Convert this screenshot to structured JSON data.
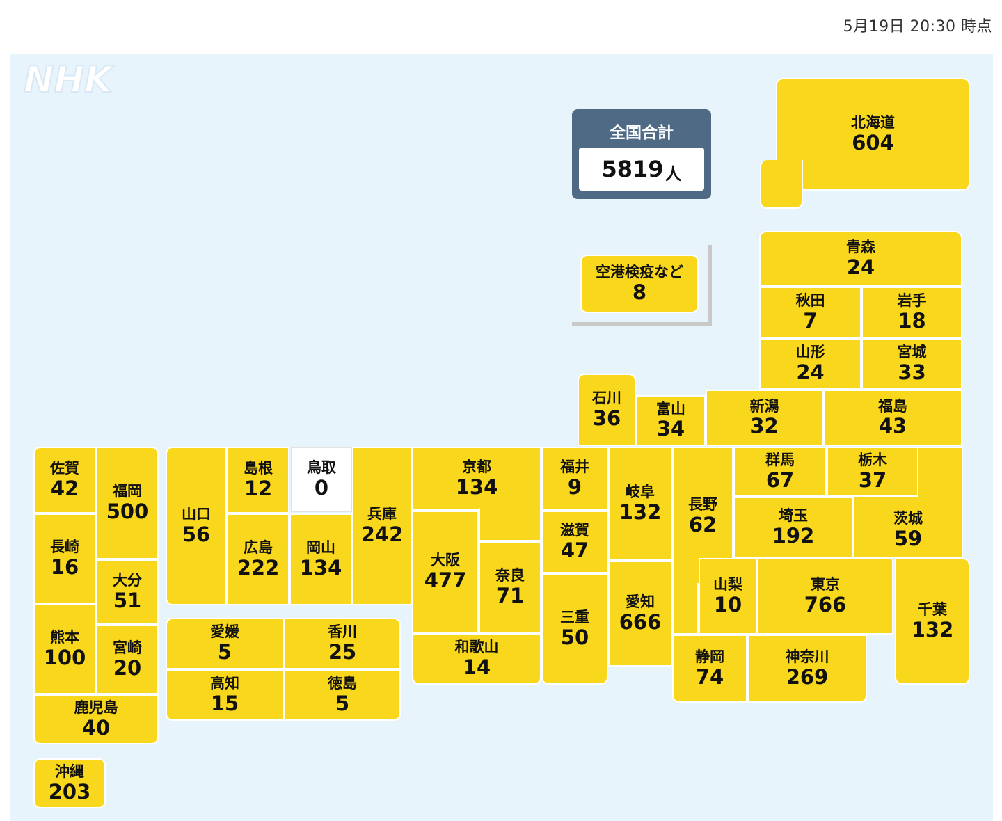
{
  "timestamp": "5月19日 20:30 時点",
  "logo": {
    "text": "NHK"
  },
  "colors": {
    "background": "#e8f4fc",
    "case_fill": "#f9d71c",
    "zero_fill": "#ffffff",
    "total_panel": "#4f6a84"
  },
  "total": {
    "label": "全国合計",
    "value": "5819",
    "unit": "人"
  },
  "quarantine": {
    "name": "空港検疫など",
    "value": "8"
  },
  "prefectures": [
    {
      "key": "hokkaido",
      "name": "北海道",
      "value": "604"
    },
    {
      "key": "aomori",
      "name": "青森",
      "value": "24"
    },
    {
      "key": "akita",
      "name": "秋田",
      "value": "7"
    },
    {
      "key": "iwate",
      "name": "岩手",
      "value": "18"
    },
    {
      "key": "yamagata",
      "name": "山形",
      "value": "24"
    },
    {
      "key": "miyagi",
      "name": "宮城",
      "value": "33"
    },
    {
      "key": "ishikawa",
      "name": "石川",
      "value": "36"
    },
    {
      "key": "toyama",
      "name": "富山",
      "value": "34"
    },
    {
      "key": "niigata",
      "name": "新潟",
      "value": "32"
    },
    {
      "key": "fukushima",
      "name": "福島",
      "value": "43"
    },
    {
      "key": "saga",
      "name": "佐賀",
      "value": "42"
    },
    {
      "key": "fukuoka",
      "name": "福岡",
      "value": "500"
    },
    {
      "key": "yamaguchi",
      "name": "山口",
      "value": "56"
    },
    {
      "key": "shimane",
      "name": "島根",
      "value": "12"
    },
    {
      "key": "tottori",
      "name": "鳥取",
      "value": "0"
    },
    {
      "key": "hyogo",
      "name": "兵庫",
      "value": "242"
    },
    {
      "key": "kyoto",
      "name": "京都",
      "value": "134"
    },
    {
      "key": "fukui",
      "name": "福井",
      "value": "9"
    },
    {
      "key": "gifu",
      "name": "岐阜",
      "value": "132"
    },
    {
      "key": "nagano",
      "name": "長野",
      "value": "62"
    },
    {
      "key": "gunma",
      "name": "群馬",
      "value": "67"
    },
    {
      "key": "tochigi",
      "name": "栃木",
      "value": "37"
    },
    {
      "key": "nagasaki",
      "name": "長崎",
      "value": "16"
    },
    {
      "key": "oita",
      "name": "大分",
      "value": "51"
    },
    {
      "key": "hiroshima",
      "name": "広島",
      "value": "222"
    },
    {
      "key": "okayama",
      "name": "岡山",
      "value": "134"
    },
    {
      "key": "osaka",
      "name": "大阪",
      "value": "477"
    },
    {
      "key": "nara",
      "name": "奈良",
      "value": "71"
    },
    {
      "key": "shiga",
      "name": "滋賀",
      "value": "47"
    },
    {
      "key": "mie",
      "name": "三重",
      "value": "50"
    },
    {
      "key": "aichi",
      "name": "愛知",
      "value": "666"
    },
    {
      "key": "saitama",
      "name": "埼玉",
      "value": "192"
    },
    {
      "key": "ibaraki",
      "name": "茨城",
      "value": "59"
    },
    {
      "key": "yamanashi",
      "name": "山梨",
      "value": "10"
    },
    {
      "key": "tokyo",
      "name": "東京",
      "value": "766"
    },
    {
      "key": "chiba",
      "name": "千葉",
      "value": "132"
    },
    {
      "key": "kumamoto",
      "name": "熊本",
      "value": "100"
    },
    {
      "key": "miyazaki",
      "name": "宮崎",
      "value": "20"
    },
    {
      "key": "ehime",
      "name": "愛媛",
      "value": "5"
    },
    {
      "key": "kagawa",
      "name": "香川",
      "value": "25"
    },
    {
      "key": "kochi",
      "name": "高知",
      "value": "15"
    },
    {
      "key": "tokushima",
      "name": "徳島",
      "value": "5"
    },
    {
      "key": "wakayama",
      "name": "和歌山",
      "value": "14"
    },
    {
      "key": "shizuoka",
      "name": "静岡",
      "value": "74"
    },
    {
      "key": "kanagawa",
      "name": "神奈川",
      "value": "269"
    },
    {
      "key": "kagoshima",
      "name": "鹿児島",
      "value": "40"
    },
    {
      "key": "okinawa",
      "name": "沖縄",
      "value": "203"
    }
  ]
}
